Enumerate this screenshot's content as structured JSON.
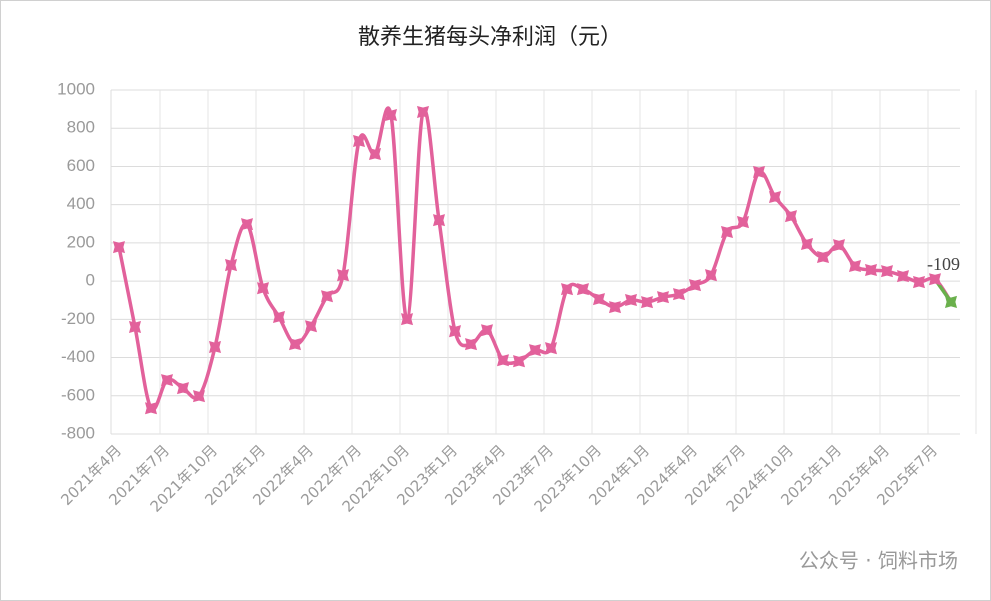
{
  "chart_data": {
    "type": "line",
    "title": "散养生猪每头净利润（元）",
    "categories": [
      "2021年4月",
      null,
      null,
      "2021年7月",
      null,
      null,
      "2021年10月",
      null,
      null,
      "2022年1月",
      null,
      null,
      "2022年4月",
      null,
      null,
      "2022年7月",
      null,
      null,
      "2022年10月",
      null,
      null,
      "2023年1月",
      null,
      null,
      "2023年4月",
      null,
      null,
      "2023年7月",
      null,
      null,
      "2023年10月",
      null,
      null,
      "2024年1月",
      null,
      null,
      "2024年4月",
      null,
      null,
      "2024年7月",
      null,
      null,
      "2024年10月",
      null,
      null,
      "2025年1月",
      null,
      null,
      "2025年4月",
      null,
      null,
      "2025年7月",
      null
    ],
    "values": [
      178,
      -240,
      -665,
      -518,
      -560,
      -602,
      -345,
      84,
      298,
      -37,
      -188,
      -330,
      -236,
      -79,
      31,
      733,
      665,
      869,
      -199,
      885,
      319,
      -262,
      -330,
      -257,
      -414,
      -419,
      -361,
      -351,
      -42,
      -42,
      -94,
      -136,
      -99,
      -110,
      -84,
      -68,
      -21,
      31,
      257,
      309,
      571,
      440,
      340,
      194,
      126,
      188,
      79,
      58,
      52,
      26,
      -5,
      10,
      -109
    ],
    "color": "#e2619b",
    "last_point_color": "#6ab04c",
    "label_last_point": true,
    "ylim": [
      -800,
      1000
    ],
    "yticks": [
      -800,
      -600,
      -400,
      -200,
      0,
      200,
      400,
      600,
      800,
      1000
    ],
    "grid": true,
    "watermark": "公众号 · 饲料市场"
  }
}
